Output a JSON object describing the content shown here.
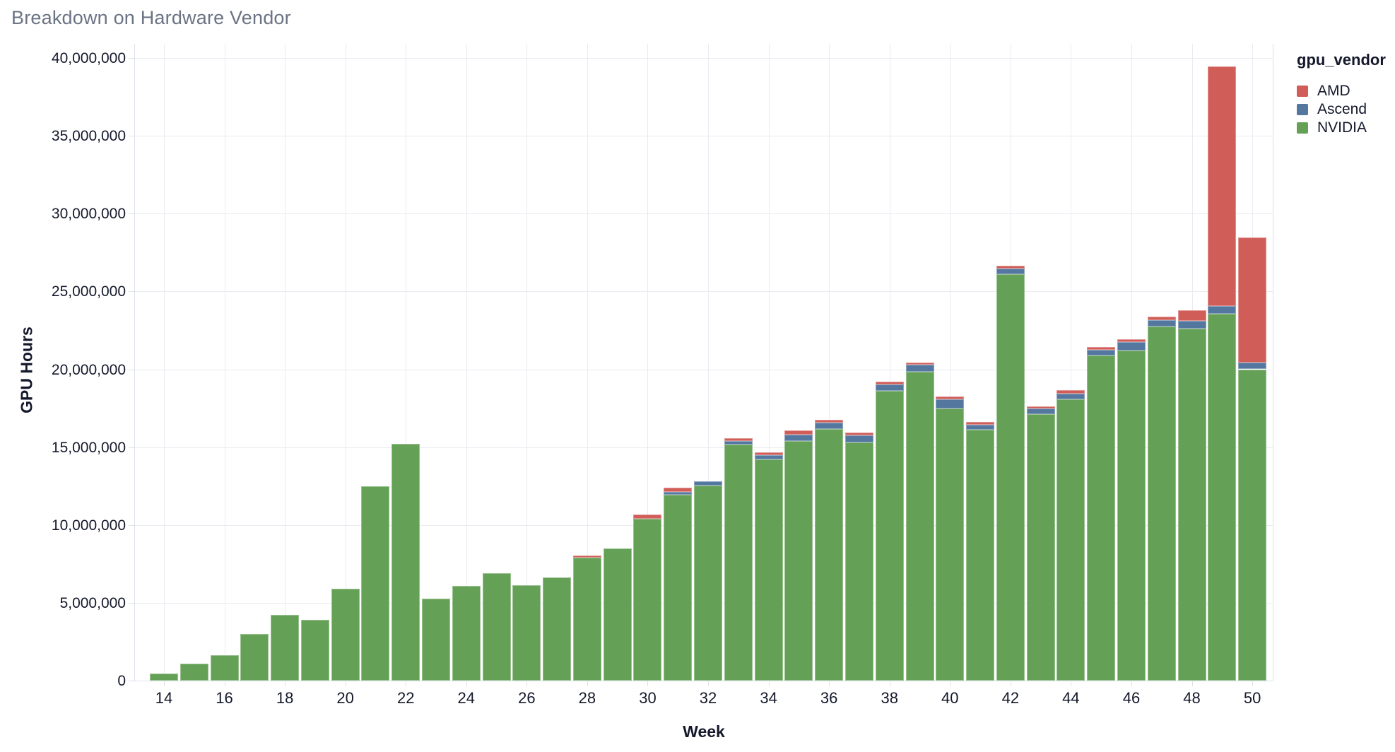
{
  "title": "Breakdown on Hardware Vendor",
  "axes": {
    "x_label": "Week",
    "y_label": "GPU Hours"
  },
  "legend": {
    "title": "gpu_vendor",
    "items": [
      {
        "label": "AMD",
        "color": "#d05d58"
      },
      {
        "label": "Ascend",
        "color": "#5477a0"
      },
      {
        "label": "NVIDIA",
        "color": "#64a055"
      }
    ]
  },
  "chart_data": {
    "type": "bar",
    "stacked": true,
    "title": "Breakdown on Hardware Vendor",
    "xlabel": "Week",
    "ylabel": "GPU Hours",
    "ylim": [
      0,
      40000000
    ],
    "grid": true,
    "legend_position": "right",
    "x": [
      14,
      15,
      16,
      17,
      18,
      19,
      20,
      21,
      22,
      23,
      24,
      25,
      26,
      27,
      28,
      29,
      30,
      31,
      32,
      33,
      34,
      35,
      36,
      37,
      38,
      39,
      40,
      41,
      42,
      43,
      44,
      45,
      46,
      47,
      48,
      49,
      50
    ],
    "x_ticks": [
      14,
      16,
      18,
      20,
      22,
      24,
      26,
      28,
      30,
      32,
      34,
      36,
      38,
      40,
      42,
      44,
      46,
      48,
      50
    ],
    "y_ticks": [
      0,
      5000000,
      10000000,
      15000000,
      20000000,
      25000000,
      30000000,
      35000000,
      40000000
    ],
    "stack_order": [
      "NVIDIA",
      "Ascend",
      "AMD"
    ],
    "series": [
      {
        "name": "NVIDIA",
        "color": "#64a055",
        "values": [
          450000,
          1100000,
          1650000,
          3000000,
          4200000,
          3900000,
          5900000,
          12500000,
          15200000,
          5250000,
          6100000,
          6900000,
          6150000,
          6650000,
          7900000,
          8500000,
          10400000,
          11950000,
          12550000,
          15150000,
          14200000,
          15400000,
          16150000,
          15300000,
          18600000,
          19850000,
          17500000,
          16100000,
          26100000,
          17100000,
          18050000,
          20900000,
          21200000,
          22750000,
          22600000,
          23550000,
          20000000
        ]
      },
      {
        "name": "Ascend",
        "color": "#5477a0",
        "values": [
          0,
          0,
          0,
          0,
          0,
          0,
          0,
          0,
          0,
          0,
          0,
          0,
          0,
          0,
          0,
          0,
          0,
          180000,
          250000,
          220000,
          300000,
          400000,
          400000,
          450000,
          420000,
          450000,
          550000,
          350000,
          380000,
          360000,
          400000,
          350000,
          550000,
          420000,
          500000,
          500000,
          450000
        ]
      },
      {
        "name": "AMD",
        "color": "#d05d58",
        "values": [
          0,
          0,
          0,
          0,
          0,
          0,
          0,
          0,
          0,
          0,
          0,
          0,
          0,
          0,
          150000,
          0,
          250000,
          280000,
          0,
          200000,
          150000,
          250000,
          200000,
          200000,
          180000,
          150000,
          220000,
          180000,
          150000,
          150000,
          200000,
          170000,
          200000,
          230000,
          700000,
          15400000,
          8000000
        ]
      }
    ]
  }
}
